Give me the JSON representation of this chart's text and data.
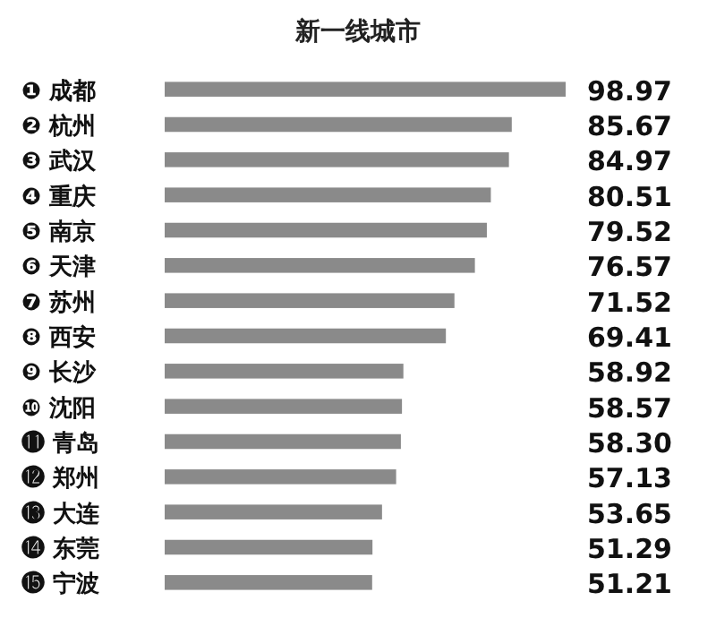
{
  "chart_data": {
    "type": "bar",
    "orientation": "horizontal",
    "title": "新一线城市",
    "categories": [
      "❶ 成都",
      "❷ 杭州",
      "❸ 武汉",
      "❹ 重庆",
      "❺ 南京",
      "❻ 天津",
      "❼ 苏州",
      "❽ 西安",
      "❾ 长沙",
      "❿ 沈阳",
      "⓫ 青岛",
      "⓬ 郑州",
      "⓭ 大连",
      "⓮ 东莞",
      "⓯ 宁波"
    ],
    "values": [
      98.97,
      85.67,
      84.97,
      80.51,
      79.52,
      76.57,
      71.52,
      69.41,
      58.92,
      58.57,
      58.3,
      57.13,
      53.65,
      51.29,
      51.21
    ],
    "value_labels": [
      "98.97",
      "85.67",
      "84.97",
      "80.51",
      "79.52",
      "76.57",
      "71.52",
      "69.41",
      "58.92",
      "58.57",
      "58.30",
      "57.13",
      "53.65",
      "51.29",
      "51.21"
    ],
    "color": "#8a8a8a"
  }
}
